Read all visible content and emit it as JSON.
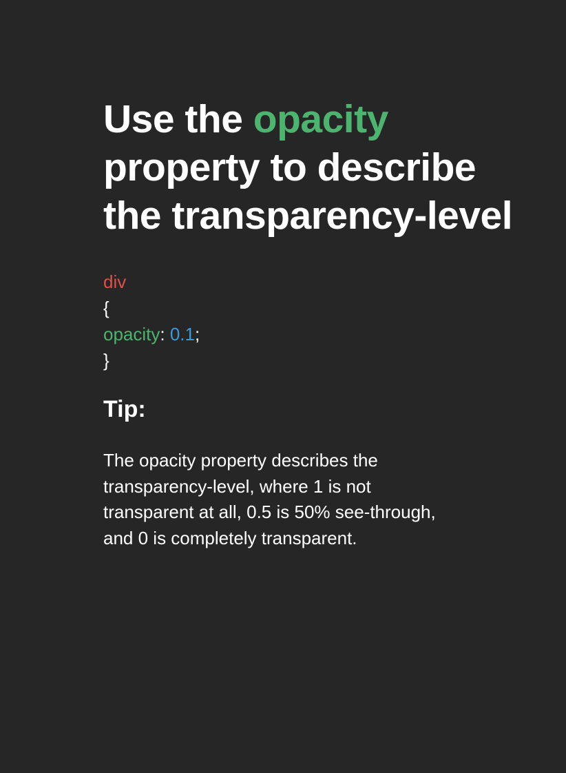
{
  "headline": {
    "part1": "Use the ",
    "highlight": "opacity",
    "part2": " property to describe the transparency-level"
  },
  "code": {
    "selector": "div",
    "open_brace": "{",
    "property": "opacity",
    "colon": ": ",
    "value": "0.1",
    "semicolon": ";",
    "close_brace": "}"
  },
  "tip": {
    "heading": "Tip:",
    "text": "The opacity property describes the transparency-level, where 1 is not transparent at all, 0.5 is 50% see-through, and 0 is completely transparent."
  },
  "colors": {
    "background": "#262626",
    "text": "#ffffff",
    "property_green": "#4db46f",
    "selector_red": "#e0504a",
    "value_blue": "#3b9ad9"
  }
}
